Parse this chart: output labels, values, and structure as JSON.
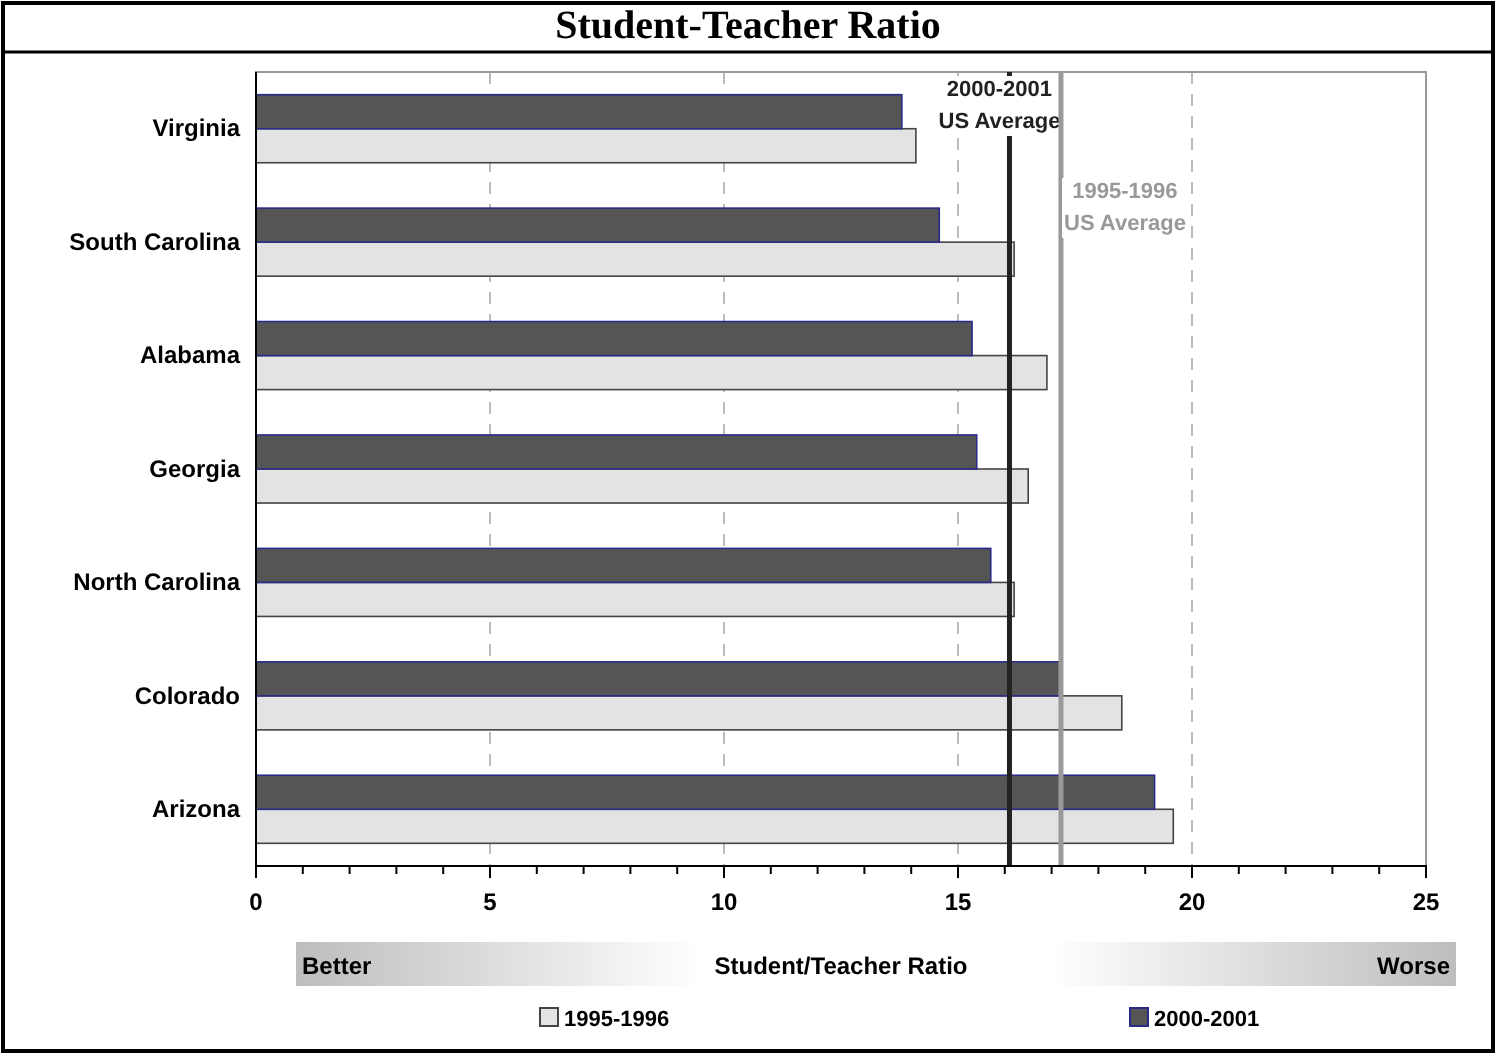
{
  "chart_data": {
    "type": "bar",
    "orientation": "horizontal",
    "title": "Student-Teacher Ratio",
    "xlabel": "Student/Teacher Ratio",
    "categories": [
      "Virginia",
      "South Carolina",
      "Alabama",
      "Georgia",
      "North Carolina",
      "Colorado",
      "Arizona"
    ],
    "series": [
      {
        "name": "1995-1996",
        "color": "#e3e3e3",
        "values": [
          14.1,
          16.2,
          16.9,
          16.5,
          16.2,
          18.5,
          19.6
        ]
      },
      {
        "name": "2000-2001",
        "color": "#555555",
        "values": [
          13.8,
          14.6,
          15.3,
          15.4,
          15.7,
          17.2,
          19.2
        ]
      }
    ],
    "xlim": [
      0,
      25
    ],
    "xticks": [
      0,
      5,
      10,
      15,
      20,
      25
    ],
    "grid": "x",
    "legend": "bottom",
    "ref_lines": [
      {
        "axis": "x",
        "value": 16.1,
        "label": "2000-2001 US Average",
        "color": "#222222"
      },
      {
        "axis": "x",
        "value": 17.2,
        "label": "1995-1996 US Average",
        "color": "#999999"
      }
    ],
    "annotations": [
      "Better",
      "Worse"
    ]
  }
}
